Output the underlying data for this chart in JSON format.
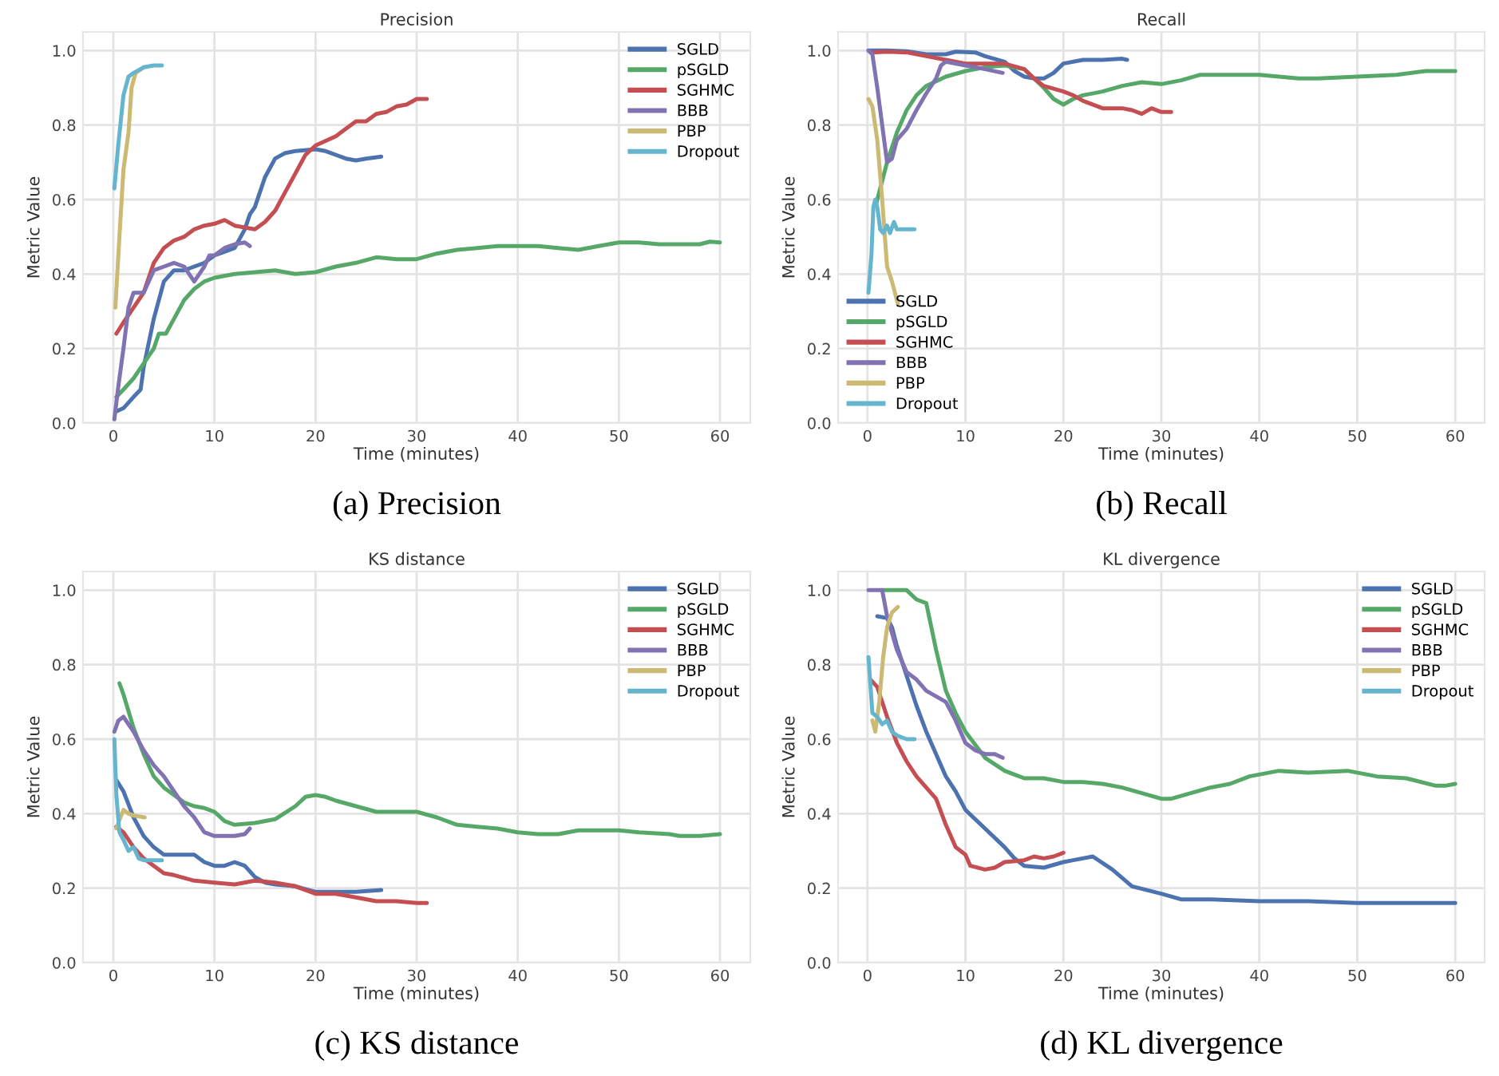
{
  "chart_data": [
    {
      "type": "line",
      "title": "Precision",
      "xlabel": "Time (minutes)",
      "ylabel": "Metric Value",
      "annotations": [
        "(a) Precision"
      ],
      "legend": "top right",
      "grid": true,
      "xlim": [
        -3,
        63
      ],
      "xticks": [
        0,
        10,
        20,
        30,
        40,
        50,
        60
      ],
      "ylim": [
        0,
        1.05
      ],
      "yticks": [
        {
          "value": 0,
          "label": "0.0"
        },
        {
          "value": 0.2,
          "label": "0.2"
        },
        {
          "value": 0.4,
          "label": "0.4"
        },
        {
          "value": 0.6,
          "label": "0.6"
        },
        {
          "value": 0.8,
          "label": "0.8"
        },
        {
          "value": 1,
          "label": "1.0"
        }
      ],
      "series": [
        {
          "name": "SGLD",
          "color": "#4c72b0",
          "x": [
            0.2,
            1,
            2,
            2.7,
            3,
            4,
            5,
            6,
            7,
            8,
            9,
            10,
            11,
            12,
            13,
            13.5,
            14,
            15,
            16,
            17,
            18,
            20,
            21,
            22,
            23,
            24,
            25,
            26.5
          ],
          "values": [
            0.03,
            0.04,
            0.07,
            0.09,
            0.15,
            0.28,
            0.38,
            0.41,
            0.41,
            0.42,
            0.43,
            0.45,
            0.46,
            0.47,
            0.52,
            0.56,
            0.58,
            0.66,
            0.71,
            0.725,
            0.73,
            0.735,
            0.73,
            0.72,
            0.71,
            0.705,
            0.71,
            0.715
          ]
        },
        {
          "name": "pSGLD",
          "color": "#55a868",
          "x": [
            0.3,
            1,
            2,
            3,
            4,
            4.5,
            5.2,
            6,
            7,
            8,
            9,
            10,
            12,
            14,
            16,
            18,
            20,
            22,
            24,
            26,
            28,
            30,
            32,
            34,
            36,
            38,
            40,
            42,
            44,
            46,
            48,
            50,
            52,
            54,
            56,
            58,
            59,
            60
          ],
          "values": [
            0.07,
            0.09,
            0.12,
            0.16,
            0.2,
            0.24,
            0.24,
            0.28,
            0.33,
            0.36,
            0.38,
            0.39,
            0.4,
            0.405,
            0.41,
            0.4,
            0.405,
            0.42,
            0.43,
            0.445,
            0.44,
            0.44,
            0.455,
            0.465,
            0.47,
            0.475,
            0.475,
            0.475,
            0.47,
            0.465,
            0.475,
            0.485,
            0.485,
            0.48,
            0.48,
            0.48,
            0.487,
            0.485
          ]
        },
        {
          "name": "SGHMC",
          "color": "#c44e52",
          "x": [
            0.3,
            1,
            2,
            3,
            4,
            5,
            6,
            7,
            8,
            9,
            10,
            11,
            12,
            13,
            14,
            15,
            16,
            17,
            18,
            19,
            20,
            22,
            23,
            24,
            25,
            26,
            27,
            28,
            29,
            30,
            31
          ],
          "values": [
            0.24,
            0.27,
            0.31,
            0.35,
            0.43,
            0.47,
            0.49,
            0.5,
            0.52,
            0.53,
            0.535,
            0.545,
            0.53,
            0.525,
            0.52,
            0.54,
            0.57,
            0.62,
            0.67,
            0.72,
            0.745,
            0.77,
            0.79,
            0.81,
            0.81,
            0.83,
            0.835,
            0.85,
            0.855,
            0.87,
            0.87
          ]
        },
        {
          "name": "BBB",
          "color": "#8172b2",
          "x": [
            0.1,
            0.5,
            1,
            1.5,
            2,
            3,
            4,
            5,
            6,
            7,
            7.5,
            8,
            8.5,
            9,
            9.5,
            10,
            11,
            12,
            13,
            13.5
          ],
          "values": [
            0.01,
            0.1,
            0.2,
            0.31,
            0.35,
            0.35,
            0.41,
            0.42,
            0.43,
            0.42,
            0.4,
            0.38,
            0.4,
            0.42,
            0.45,
            0.45,
            0.47,
            0.48,
            0.485,
            0.475
          ]
        },
        {
          "name": "PBP",
          "color": "#ccb974",
          "x": [
            0.2,
            0.6,
            1,
            1.5,
            1.8,
            2.2,
            3
          ],
          "values": [
            0.31,
            0.5,
            0.68,
            0.78,
            0.9,
            0.94,
            0.955
          ]
        },
        {
          "name": "Dropout",
          "color": "#64b5cd",
          "x": [
            0.1,
            0.5,
            1,
            1.5,
            2,
            3,
            4,
            4.8
          ],
          "values": [
            0.63,
            0.75,
            0.88,
            0.93,
            0.94,
            0.955,
            0.96,
            0.96
          ]
        }
      ]
    },
    {
      "type": "line",
      "title": "Recall",
      "xlabel": "Time (minutes)",
      "ylabel": "Metric Value",
      "annotations": [
        "(b) Recall"
      ],
      "legend": "bottom left",
      "grid": true,
      "xlim": [
        -3,
        63
      ],
      "xticks": [
        0,
        10,
        20,
        30,
        40,
        50,
        60
      ],
      "ylim": [
        0,
        1.05
      ],
      "yticks": [
        {
          "value": 0,
          "label": "0.0"
        },
        {
          "value": 0.2,
          "label": "0.2"
        },
        {
          "value": 0.4,
          "label": "0.4"
        },
        {
          "value": 0.6,
          "label": "0.6"
        },
        {
          "value": 0.8,
          "label": "0.8"
        },
        {
          "value": 1,
          "label": "1.0"
        }
      ],
      "series": [
        {
          "name": "SGLD",
          "color": "#4c72b0",
          "x": [
            0.1,
            2,
            4,
            6,
            8,
            9,
            11,
            12,
            14,
            15,
            16,
            17,
            18,
            19,
            20,
            22,
            24,
            26,
            26.5
          ],
          "values": [
            1.0,
            1.0,
            0.998,
            0.99,
            0.99,
            0.997,
            0.995,
            0.985,
            0.97,
            0.945,
            0.93,
            0.925,
            0.925,
            0.94,
            0.965,
            0.975,
            0.975,
            0.978,
            0.975
          ]
        },
        {
          "name": "pSGLD",
          "color": "#55a868",
          "x": [
            0.9,
            2,
            3,
            4,
            5,
            6,
            8,
            10,
            12,
            14,
            16,
            18,
            19,
            20,
            21,
            22,
            24,
            26,
            28,
            30,
            32,
            34,
            36,
            38,
            40,
            42,
            44,
            46,
            50,
            54,
            57,
            60
          ],
          "values": [
            0.59,
            0.7,
            0.78,
            0.84,
            0.88,
            0.905,
            0.93,
            0.945,
            0.955,
            0.96,
            0.95,
            0.9,
            0.87,
            0.855,
            0.87,
            0.88,
            0.89,
            0.905,
            0.915,
            0.91,
            0.92,
            0.935,
            0.935,
            0.935,
            0.935,
            0.93,
            0.925,
            0.925,
            0.93,
            0.935,
            0.945,
            0.945
          ]
        },
        {
          "name": "SGHMC",
          "color": "#c44e52",
          "x": [
            0.5,
            2,
            4,
            6,
            8,
            10,
            12,
            14,
            16,
            17,
            18,
            20,
            21,
            22,
            24,
            26,
            27,
            28,
            29,
            30,
            31
          ],
          "values": [
            0.995,
            0.997,
            0.995,
            0.985,
            0.975,
            0.965,
            0.965,
            0.965,
            0.95,
            0.925,
            0.905,
            0.89,
            0.88,
            0.865,
            0.845,
            0.845,
            0.84,
            0.83,
            0.845,
            0.835,
            0.835
          ]
        },
        {
          "name": "BBB",
          "color": "#8172b2",
          "x": [
            0.1,
            0.5,
            1,
            1.5,
            2,
            2.5,
            3,
            4,
            5,
            6,
            7,
            7.5,
            8,
            10,
            12,
            13.8
          ],
          "values": [
            1.0,
            0.99,
            0.9,
            0.8,
            0.7,
            0.71,
            0.76,
            0.79,
            0.84,
            0.885,
            0.925,
            0.96,
            0.97,
            0.96,
            0.95,
            0.94
          ]
        },
        {
          "name": "PBP",
          "color": "#ccb974",
          "x": [
            0.1,
            0.5,
            1,
            1.5,
            2,
            2.5,
            3.1
          ],
          "values": [
            0.87,
            0.85,
            0.76,
            0.6,
            0.42,
            0.38,
            0.32
          ]
        },
        {
          "name": "Dropout",
          "color": "#64b5cd",
          "x": [
            0.1,
            0.4,
            0.6,
            0.8,
            1,
            1.3,
            1.6,
            2,
            2.3,
            2.7,
            3,
            4,
            4.8
          ],
          "values": [
            0.35,
            0.45,
            0.58,
            0.6,
            0.58,
            0.52,
            0.51,
            0.53,
            0.51,
            0.54,
            0.52,
            0.52,
            0.52
          ]
        }
      ]
    },
    {
      "type": "line",
      "title": "KS distance",
      "xlabel": "Time (minutes)",
      "ylabel": "Metric Value",
      "annotations": [
        "(c) KS distance"
      ],
      "legend": "top right",
      "grid": true,
      "xlim": [
        -3,
        63
      ],
      "xticks": [
        0,
        10,
        20,
        30,
        40,
        50,
        60
      ],
      "ylim": [
        0,
        1.05
      ],
      "yticks": [
        {
          "value": 0,
          "label": "0.0"
        },
        {
          "value": 0.2,
          "label": "0.2"
        },
        {
          "value": 0.4,
          "label": "0.4"
        },
        {
          "value": 0.6,
          "label": "0.6"
        },
        {
          "value": 0.8,
          "label": "0.8"
        },
        {
          "value": 1,
          "label": "1.0"
        }
      ],
      "series": [
        {
          "name": "SGLD",
          "color": "#4c72b0",
          "x": [
            0.3,
            1,
            2,
            3,
            4,
            5,
            6,
            7,
            8,
            9,
            10,
            11,
            12,
            13,
            14,
            15,
            16,
            18,
            20,
            22,
            24,
            26.5
          ],
          "values": [
            0.49,
            0.46,
            0.39,
            0.34,
            0.31,
            0.29,
            0.29,
            0.29,
            0.29,
            0.27,
            0.26,
            0.26,
            0.27,
            0.26,
            0.23,
            0.215,
            0.21,
            0.205,
            0.19,
            0.19,
            0.19,
            0.195
          ]
        },
        {
          "name": "pSGLD",
          "color": "#55a868",
          "x": [
            0.6,
            1,
            2,
            3,
            4,
            5,
            6,
            7,
            8,
            9,
            10,
            11,
            12,
            14,
            16,
            18,
            19,
            20,
            21,
            22,
            24,
            26,
            28,
            30,
            32,
            34,
            36,
            38,
            40,
            42,
            44,
            46,
            48,
            50,
            52,
            55,
            56,
            58,
            60
          ],
          "values": [
            0.75,
            0.72,
            0.63,
            0.56,
            0.5,
            0.47,
            0.45,
            0.43,
            0.42,
            0.415,
            0.405,
            0.38,
            0.37,
            0.375,
            0.385,
            0.42,
            0.445,
            0.45,
            0.445,
            0.435,
            0.42,
            0.405,
            0.405,
            0.405,
            0.39,
            0.37,
            0.365,
            0.36,
            0.35,
            0.345,
            0.345,
            0.355,
            0.355,
            0.355,
            0.35,
            0.345,
            0.34,
            0.34,
            0.345
          ]
        },
        {
          "name": "SGHMC",
          "color": "#c44e52",
          "x": [
            0.3,
            1,
            2,
            3,
            4,
            5,
            6,
            8,
            10,
            12,
            14,
            16,
            18,
            20,
            22,
            24,
            26,
            28,
            30,
            31
          ],
          "values": [
            0.365,
            0.35,
            0.31,
            0.28,
            0.26,
            0.24,
            0.235,
            0.22,
            0.215,
            0.21,
            0.22,
            0.215,
            0.205,
            0.185,
            0.185,
            0.175,
            0.165,
            0.165,
            0.16,
            0.16
          ]
        },
        {
          "name": "BBB",
          "color": "#8172b2",
          "x": [
            0.1,
            0.5,
            1,
            2,
            3,
            4,
            5,
            6,
            7,
            8,
            9,
            10,
            11,
            12,
            13,
            13.5
          ],
          "values": [
            0.62,
            0.65,
            0.66,
            0.62,
            0.57,
            0.53,
            0.5,
            0.46,
            0.42,
            0.39,
            0.35,
            0.34,
            0.34,
            0.34,
            0.345,
            0.36
          ]
        },
        {
          "name": "PBP",
          "color": "#ccb974",
          "x": [
            0.3,
            0.7,
            1,
            1.5,
            2,
            3.1
          ],
          "values": [
            0.36,
            0.39,
            0.41,
            0.4,
            0.395,
            0.39
          ]
        },
        {
          "name": "Dropout",
          "color": "#64b5cd",
          "x": [
            0.1,
            0.3,
            0.6,
            1,
            1.5,
            2,
            2.5,
            3,
            4,
            4.8
          ],
          "values": [
            0.6,
            0.45,
            0.35,
            0.33,
            0.3,
            0.31,
            0.28,
            0.275,
            0.275,
            0.275
          ]
        }
      ]
    },
    {
      "type": "line",
      "title": "KL divergence",
      "xlabel": "Time (minutes)",
      "ylabel": "Metric Value",
      "annotations": [
        "(d) KL divergence"
      ],
      "legend": "top right",
      "grid": true,
      "xlim": [
        -3,
        63
      ],
      "xticks": [
        0,
        10,
        20,
        30,
        40,
        50,
        60
      ],
      "ylim": [
        0,
        1.05
      ],
      "yticks": [
        {
          "value": 0,
          "label": "0.0"
        },
        {
          "value": 0.2,
          "label": "0.2"
        },
        {
          "value": 0.4,
          "label": "0.4"
        },
        {
          "value": 0.6,
          "label": "0.6"
        },
        {
          "value": 0.8,
          "label": "0.8"
        },
        {
          "value": 1,
          "label": "1.0"
        }
      ],
      "series": [
        {
          "name": "SGLD",
          "color": "#4c72b0",
          "x": [
            1,
            2,
            2.5,
            3,
            4,
            5,
            6,
            7,
            8,
            9,
            10,
            12,
            14,
            15,
            16,
            18,
            20,
            21,
            23,
            25,
            27,
            30,
            32,
            35,
            40,
            45,
            50,
            55,
            60
          ],
          "values": [
            0.93,
            0.925,
            0.9,
            0.85,
            0.77,
            0.69,
            0.62,
            0.56,
            0.5,
            0.46,
            0.41,
            0.36,
            0.31,
            0.28,
            0.26,
            0.255,
            0.27,
            0.275,
            0.285,
            0.25,
            0.205,
            0.185,
            0.17,
            0.17,
            0.165,
            0.165,
            0.16,
            0.16,
            0.16
          ]
        },
        {
          "name": "pSGLD",
          "color": "#55a868",
          "x": [
            1.5,
            4,
            5,
            6,
            7,
            8,
            9,
            10,
            12,
            14,
            16,
            18,
            20,
            22,
            24,
            26,
            28,
            30,
            31,
            33,
            35,
            37,
            39,
            42,
            45,
            49,
            52,
            55,
            58,
            59,
            60
          ],
          "values": [
            1.0,
            1.0,
            0.975,
            0.965,
            0.84,
            0.73,
            0.67,
            0.62,
            0.55,
            0.515,
            0.495,
            0.495,
            0.485,
            0.485,
            0.48,
            0.47,
            0.455,
            0.44,
            0.44,
            0.455,
            0.47,
            0.48,
            0.5,
            0.515,
            0.51,
            0.515,
            0.5,
            0.495,
            0.475,
            0.475,
            0.48
          ]
        },
        {
          "name": "SGHMC",
          "color": "#c44e52",
          "x": [
            0.3,
            1,
            2,
            3,
            4,
            5,
            6,
            7,
            8,
            9,
            10,
            10.5,
            12,
            13,
            14,
            16,
            17,
            18,
            19,
            20
          ],
          "values": [
            0.76,
            0.74,
            0.66,
            0.59,
            0.54,
            0.5,
            0.47,
            0.44,
            0.37,
            0.31,
            0.29,
            0.26,
            0.25,
            0.255,
            0.27,
            0.275,
            0.285,
            0.28,
            0.285,
            0.295
          ]
        },
        {
          "name": "BBB",
          "color": "#8172b2",
          "x": [
            0.1,
            1.5,
            2,
            3,
            4,
            5,
            6,
            7,
            8,
            9,
            10,
            11,
            12,
            13,
            13.8
          ],
          "values": [
            1.0,
            1.0,
            0.93,
            0.84,
            0.78,
            0.76,
            0.73,
            0.715,
            0.7,
            0.65,
            0.59,
            0.57,
            0.56,
            0.56,
            0.55
          ]
        },
        {
          "name": "PBP",
          "color": "#ccb974",
          "x": [
            0.5,
            0.8,
            1.2,
            1.6,
            2,
            2.5,
            3.1
          ],
          "values": [
            0.65,
            0.62,
            0.7,
            0.82,
            0.9,
            0.94,
            0.955
          ]
        },
        {
          "name": "Dropout",
          "color": "#64b5cd",
          "x": [
            0.1,
            0.5,
            1,
            1.5,
            2,
            2.5,
            3,
            4,
            4.8
          ],
          "values": [
            0.82,
            0.67,
            0.66,
            0.64,
            0.65,
            0.62,
            0.61,
            0.6,
            0.6
          ]
        }
      ]
    }
  ]
}
